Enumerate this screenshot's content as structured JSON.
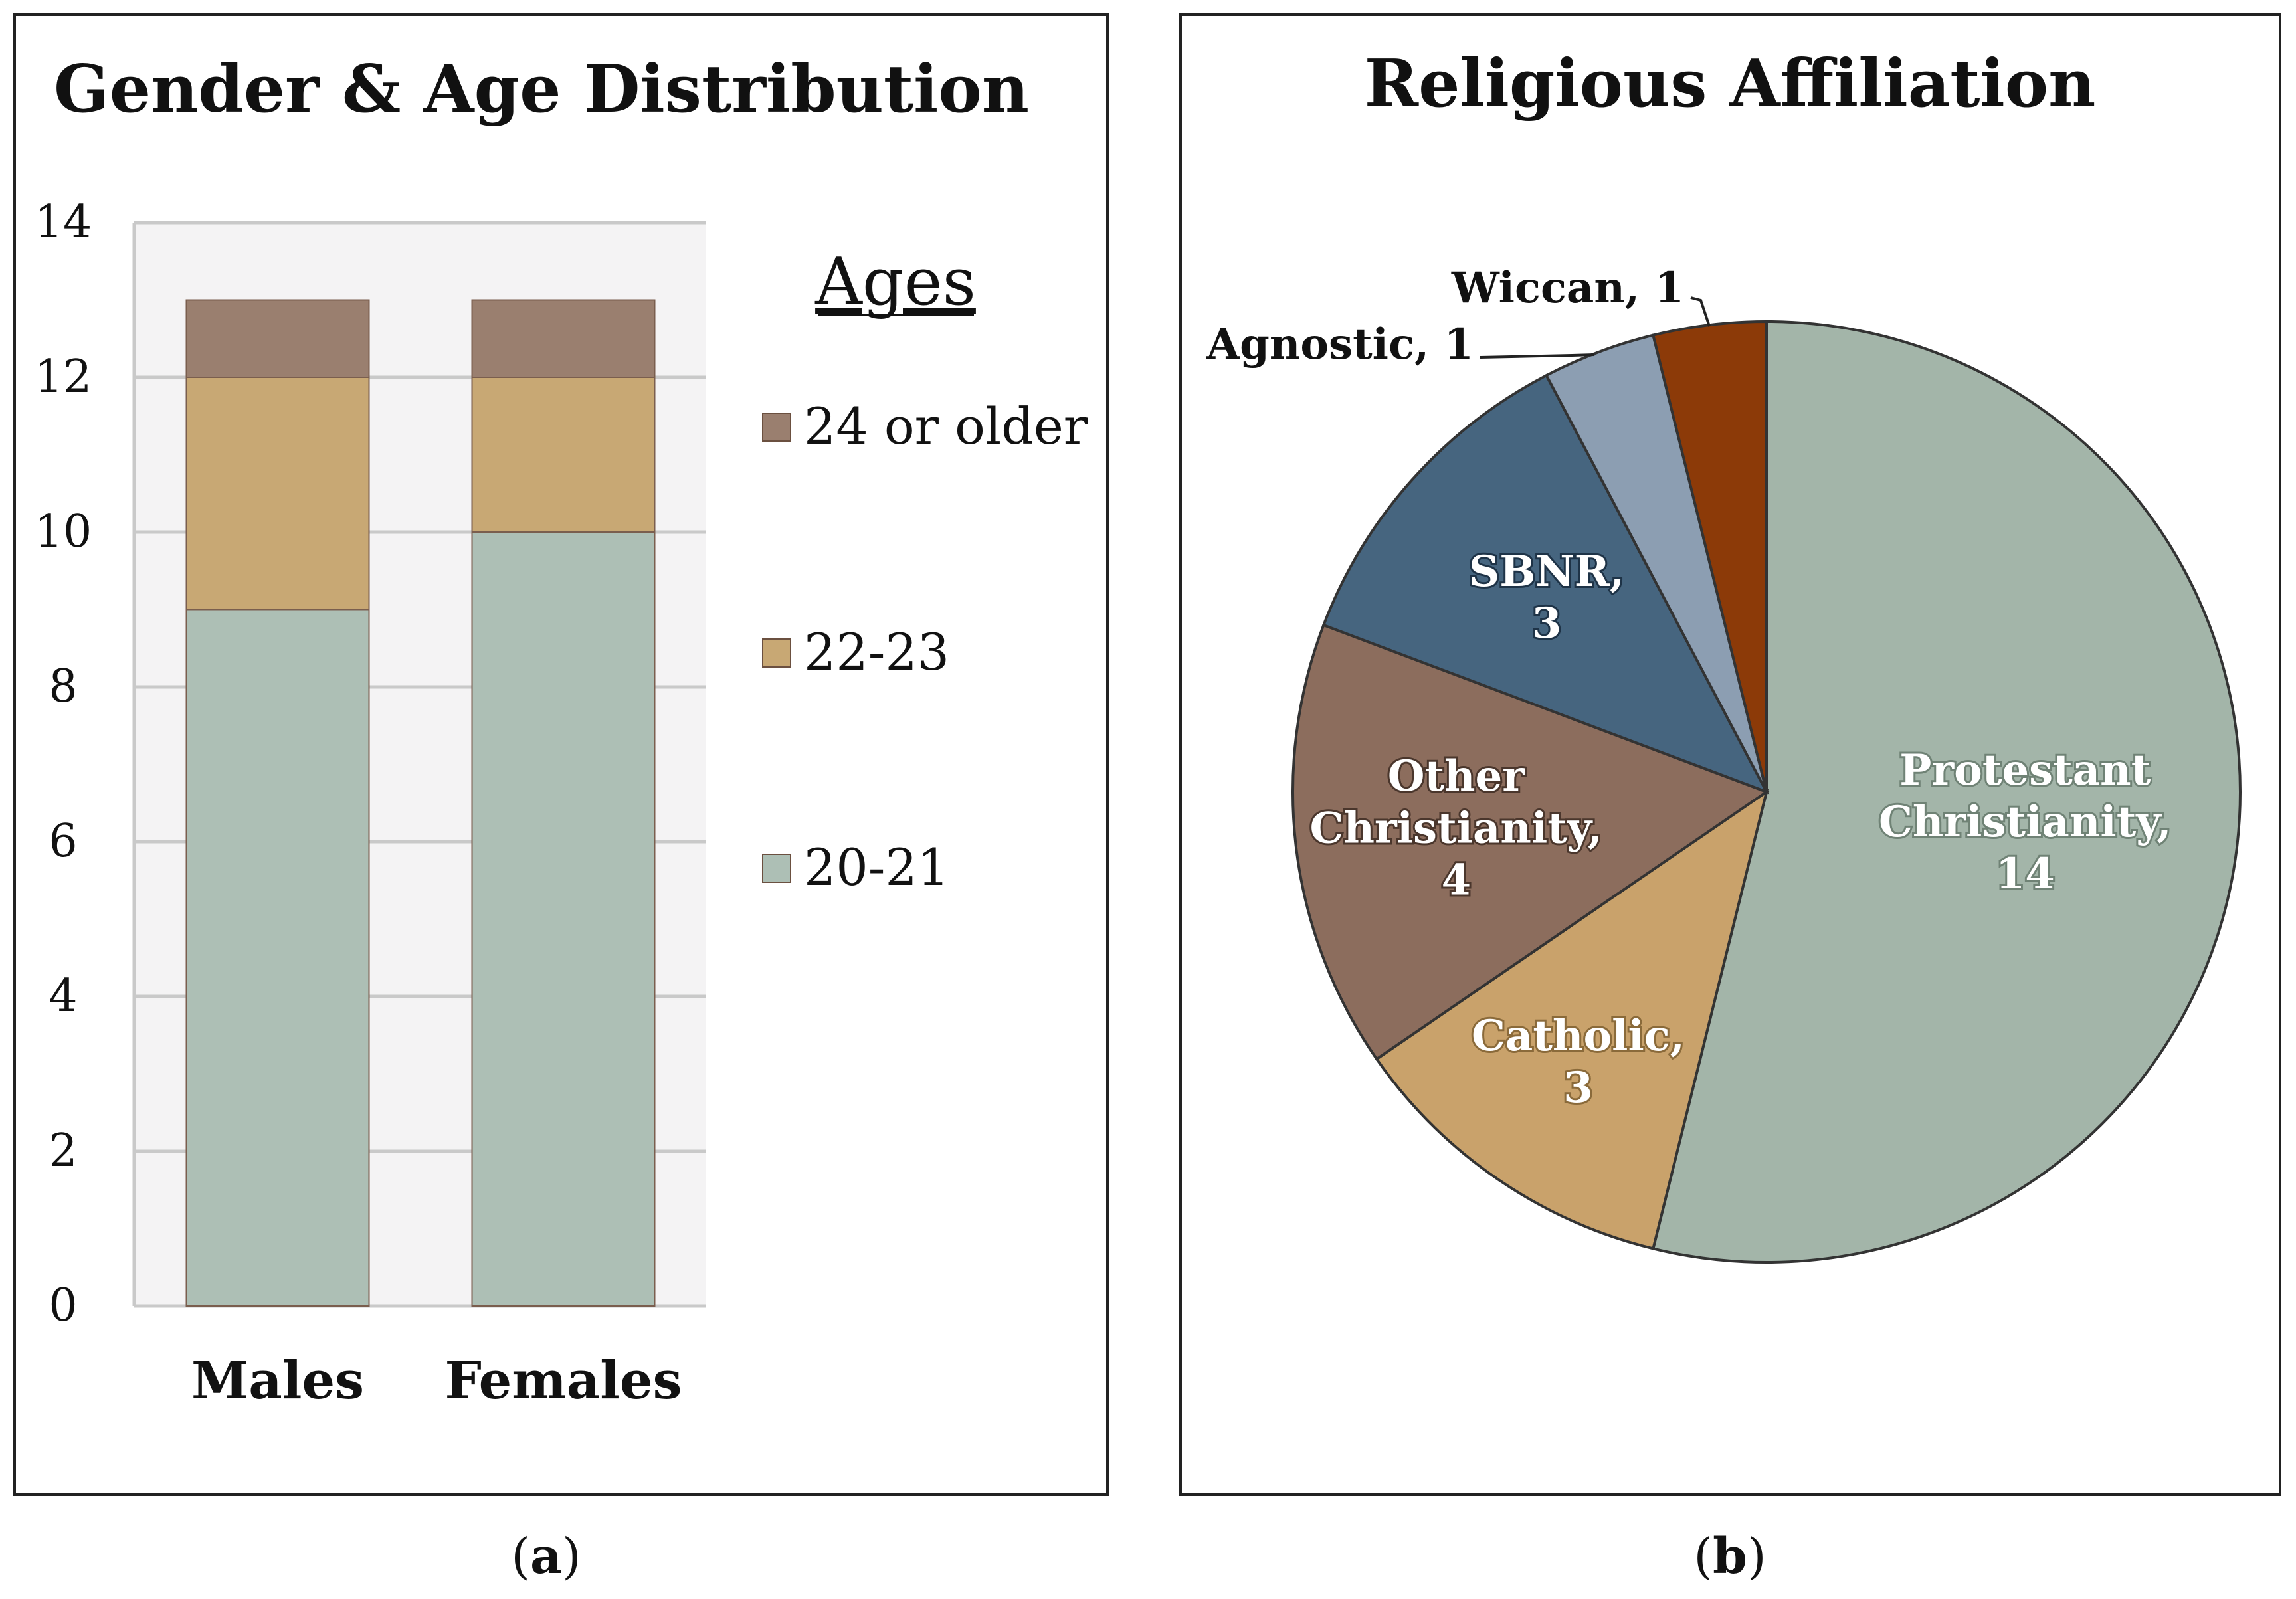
{
  "chart_data": [
    {
      "type": "bar",
      "stacked": true,
      "title": "Gender & Age Distribution",
      "categories": [
        "Males",
        "Females"
      ],
      "series": [
        {
          "name": "20-21",
          "values": [
            9,
            10
          ],
          "color": "#adbfb5"
        },
        {
          "name": "22-23",
          "values": [
            3,
            2
          ],
          "color": "#c8a874"
        },
        {
          "name": "24 or older",
          "values": [
            1,
            1
          ],
          "color": "#9a7f6f"
        }
      ],
      "legend_title": "Ages",
      "legend_order": [
        "24 or older",
        "22-23",
        "20-21"
      ],
      "ylim": [
        0,
        14
      ],
      "yticks": [
        0,
        2,
        4,
        6,
        8,
        10,
        12,
        14
      ],
      "grid": true,
      "caption": "a"
    },
    {
      "type": "pie",
      "title": "Religious Affiliation",
      "slices": [
        {
          "label": "Protestant Christianity",
          "value": 14,
          "color": "#a3b5a9",
          "text": [
            "Protestant",
            "Christianity,",
            "14"
          ]
        },
        {
          "label": "Catholic",
          "value": 3,
          "color": "#c9a26b",
          "text": [
            "Catholic,",
            "3"
          ]
        },
        {
          "label": "Other Christianity",
          "value": 4,
          "color": "#8c6d5d",
          "text": [
            "Other",
            "Christianity,",
            "4"
          ]
        },
        {
          "label": "SBNR",
          "value": 3,
          "color": "#46657f",
          "text": [
            "SBNR,",
            "3"
          ]
        },
        {
          "label": "Agnostic",
          "value": 1,
          "color": "#8c9eb2",
          "text": [
            "Agnostic, 1"
          ]
        },
        {
          "label": "Wiccan",
          "value": 1,
          "color": "#8c3a08",
          "text": [
            "Wiccan, 1"
          ]
        }
      ],
      "caption": "b"
    }
  ],
  "colors": {
    "frame": "#222222",
    "plot_bg": "#f4f3f4",
    "grid": "#c9c9c9",
    "axis_text": "#111111",
    "slice_edge": "#333333"
  }
}
